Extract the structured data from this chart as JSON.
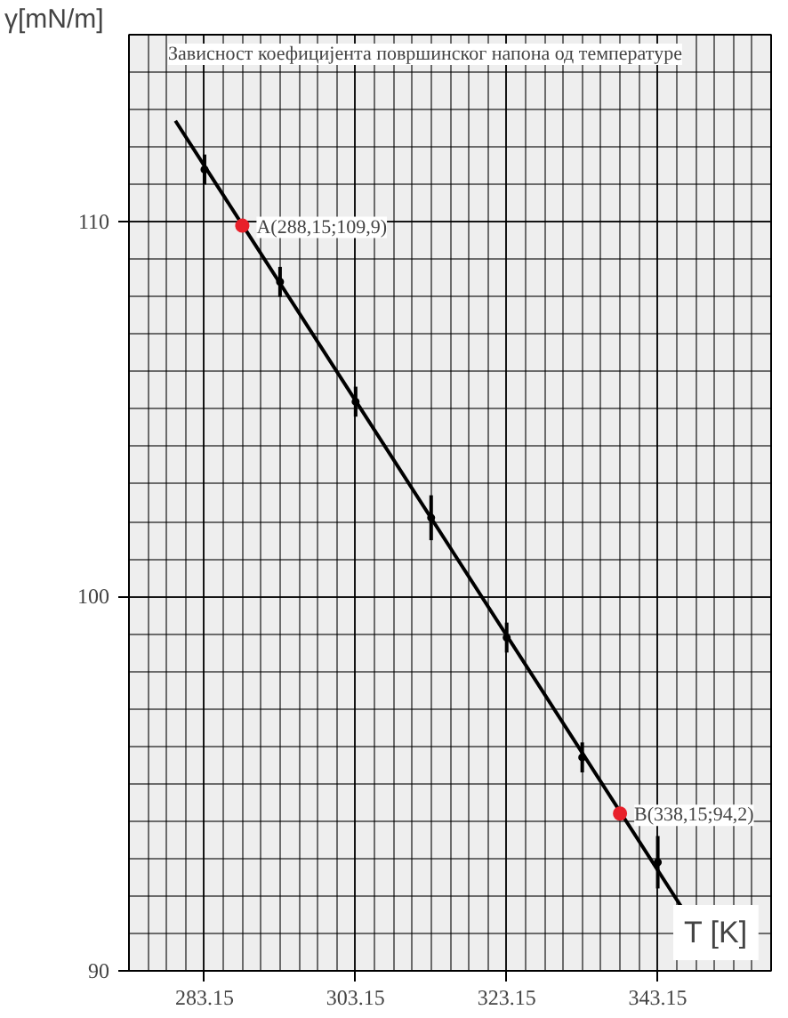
{
  "chart_data": {
    "type": "scatter",
    "title": "Зависност коефицијента површинског напона од температуре",
    "xlabel": "T [K]",
    "ylabel": "γ[mN/m]",
    "xlim": [
      273.15,
      358.15
    ],
    "ylim": [
      90,
      115
    ],
    "xticks": [
      283.15,
      303.15,
      323.15,
      343.15
    ],
    "yticks": [
      90,
      100,
      110
    ],
    "grid": true,
    "marker": "circle",
    "series": [
      {
        "type": "line",
        "marker": "none",
        "color": "#000000",
        "x": [
          279.3,
          346.3
        ],
        "values": [
          112.7,
          91.7
        ]
      },
      {
        "color": "#000000",
        "x": [
          283.15,
          293.15,
          303.15,
          313.15,
          323.15,
          333.15,
          343.15
        ],
        "values": [
          111.4,
          108.4,
          105.2,
          102.1,
          98.9,
          95.7,
          92.9
        ],
        "errors": [
          0.4,
          0.4,
          0.4,
          0.6,
          0.4,
          0.4,
          0.7
        ]
      },
      {
        "color": "#e8202a",
        "x": [
          288.15,
          338.15
        ],
        "values": [
          109.9,
          94.2
        ]
      }
    ],
    "annotations": [
      {
        "text": "A(288,15;109,9)",
        "x": 288.15,
        "y": 109.9
      },
      {
        "text": "B(338,15;94,2)",
        "x": 338.15,
        "y": 94.2
      }
    ]
  }
}
